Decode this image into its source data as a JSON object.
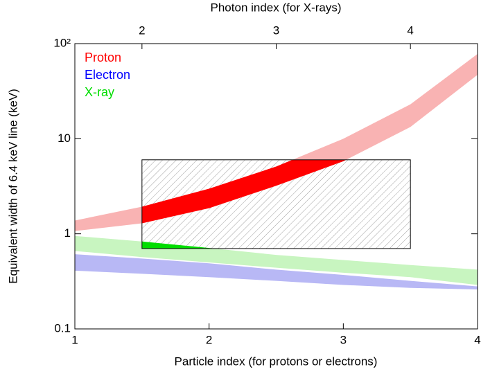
{
  "chart_data": {
    "type": "band",
    "x_label": "Particle index (for protons or electrons)",
    "x2_label": "Photon index (for X-rays)",
    "y_label": "Equivalent width of 6.4 keV line (keV)",
    "x": [
      1,
      1.5,
      2,
      2.5,
      3,
      3.5,
      4
    ],
    "series": [
      {
        "name": "Proton",
        "color": "#ff0000",
        "light_color": "#f9b3b3",
        "label_color": "#ff0000",
        "upper": [
          1.38,
          1.93,
          2.98,
          5.1,
          10,
          23,
          78
        ],
        "lower": [
          1.07,
          1.29,
          1.86,
          3.2,
          5.8,
          13.3,
          47
        ]
      },
      {
        "name": "Electron",
        "color": "#8080f0",
        "light_color": "#b8b8f5",
        "label_color": "#0000ff",
        "upper": [
          0.61,
          0.55,
          0.49,
          0.42,
          0.37,
          0.32,
          0.28
        ],
        "lower": [
          0.41,
          0.38,
          0.35,
          0.32,
          0.29,
          0.27,
          0.26
        ]
      },
      {
        "name": "X-ray",
        "color": "#00dd00",
        "light_color": "#c8f5c0",
        "label_color": "#00dd00",
        "upper": [
          0.95,
          0.83,
          0.71,
          0.6,
          0.53,
          0.47,
          0.42
        ],
        "lower": [
          0.66,
          0.57,
          0.5,
          0.44,
          0.39,
          0.35,
          0.29
        ]
      }
    ],
    "box": {
      "x": [
        1.5,
        3.5
      ],
      "y": [
        0.7,
        6
      ]
    },
    "xlim": [
      1,
      4
    ],
    "xticks": [
      1,
      2,
      3,
      4
    ],
    "x2lim": [
      1.5,
      4.5
    ],
    "x2ticks": [
      2,
      3,
      4
    ],
    "ylim": [
      0.1,
      100
    ],
    "log_y": true,
    "yticks": [
      0.1,
      1,
      10,
      {
        "value": 100,
        "label": "10²"
      }
    ],
    "legend": "upper left"
  }
}
